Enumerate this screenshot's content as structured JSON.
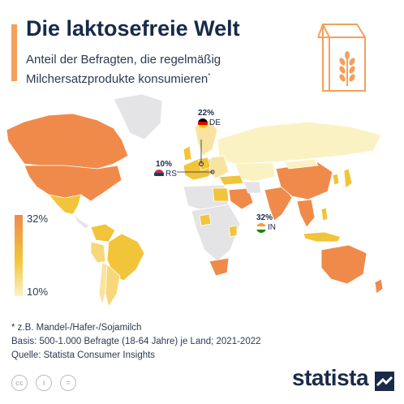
{
  "title": "Die laktosefreie Welt",
  "subtitle": "Anteil der Befragten, die regelmäßig Milchersatzprodukte konsumieren",
  "subtitle_mark": "*",
  "legend": {
    "max": "32%",
    "min": "10%"
  },
  "callouts": [
    {
      "pct": "22%",
      "code": "DE"
    },
    {
      "pct": "10%",
      "code": "RS"
    },
    {
      "pct": "32%",
      "code": "IN"
    }
  ],
  "footnote": "* z.B. Mandel-/Hafer-/Sojamilch",
  "basis": "Basis: 500-1.000 Befragte (18-64 Jahre) je Land; 2021-2022",
  "source": "Quelle: Statista Consumer Insights",
  "license_icons": [
    "cc-icon",
    "person-icon",
    "equals-icon"
  ],
  "license_labels": [
    "cc",
    "i",
    "="
  ],
  "brand": "statista",
  "colors": {
    "high": "#f08a4a",
    "mid": "#f2c43a",
    "low": "#fbf2c4",
    "no_data": "#e4e4e6",
    "accent": "#f4a05a",
    "text": "#1a2b4a"
  },
  "chart_data": {
    "type": "choropleth",
    "title": "Die laktosefreie Welt",
    "value_range": [
      10,
      32
    ],
    "unit": "%",
    "labeled_values": [
      {
        "country": "DE",
        "value": 22
      },
      {
        "country": "RS",
        "value": 10
      },
      {
        "country": "IN",
        "value": 32
      }
    ]
  }
}
